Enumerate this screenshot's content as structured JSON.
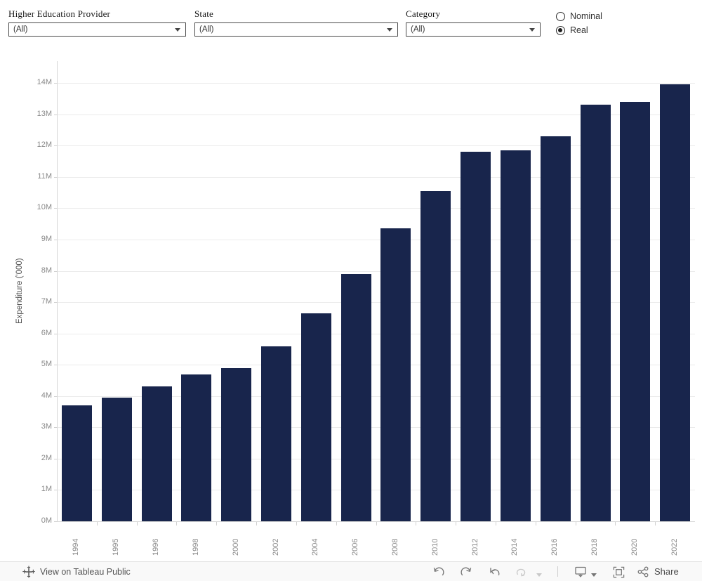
{
  "filters": [
    {
      "label": "Higher Education Provider",
      "value": "(All)"
    },
    {
      "label": "State",
      "value": "(All)"
    },
    {
      "label": "Category",
      "value": "(All)"
    }
  ],
  "radio": {
    "options": [
      {
        "label": "Nominal",
        "selected": false
      },
      {
        "label": "Real",
        "selected": true
      }
    ]
  },
  "chart_data": {
    "type": "bar",
    "title": "",
    "xlabel": "",
    "ylabel": "Expenditure ('000)",
    "categories": [
      "1994",
      "1995",
      "1996",
      "1998",
      "2000",
      "2002",
      "2004",
      "2006",
      "2008",
      "2010",
      "2012",
      "2014",
      "2016",
      "2018",
      "2020",
      "2022"
    ],
    "values": [
      3.7,
      3.95,
      4.3,
      4.7,
      4.9,
      5.6,
      6.65,
      7.9,
      9.35,
      10.55,
      11.8,
      11.85,
      12.3,
      13.3,
      13.4,
      13.95
    ],
    "value_unit": "millions (axis labelled in M of '000)",
    "ylim": [
      0,
      14.7
    ],
    "yticks": [
      {
        "v": 0,
        "label": "0M"
      },
      {
        "v": 1,
        "label": "1M"
      },
      {
        "v": 2,
        "label": "2M"
      },
      {
        "v": 3,
        "label": "3M"
      },
      {
        "v": 4,
        "label": "4M"
      },
      {
        "v": 5,
        "label": "5M"
      },
      {
        "v": 6,
        "label": "6M"
      },
      {
        "v": 7,
        "label": "7M"
      },
      {
        "v": 8,
        "label": "8M"
      },
      {
        "v": 9,
        "label": "9M"
      },
      {
        "v": 10,
        "label": "10M"
      },
      {
        "v": 11,
        "label": "11M"
      },
      {
        "v": 12,
        "label": "12M"
      },
      {
        "v": 13,
        "label": "13M"
      },
      {
        "v": 14,
        "label": "14M"
      }
    ],
    "grid": true,
    "legend": false,
    "bar_color": "#18254c"
  },
  "footer": {
    "view_label": "View on Tableau Public",
    "share_label": "Share",
    "icons": [
      "tableau-logo",
      "undo",
      "redo",
      "reset",
      "refresh",
      "refresh-caret",
      "device-preview",
      "device-preview-caret",
      "full-screen",
      "share"
    ]
  },
  "colors": {
    "bar": "#18254c",
    "gridline": "#ebebeb",
    "axis_line": "#d7d7d7",
    "tick_label": "#8a8a8a",
    "axis_title": "#4f4f4f",
    "toolbar_icon": "#757575",
    "toolbar_icon_disabled": "#c9c9c9"
  }
}
